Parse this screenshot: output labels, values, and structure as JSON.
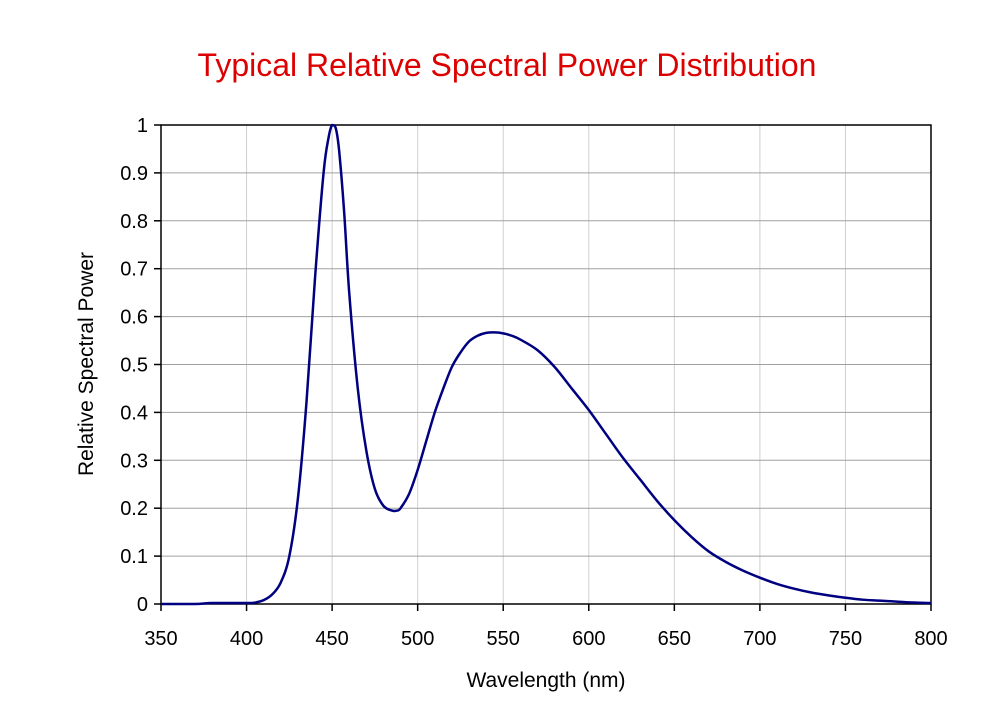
{
  "chart_data": {
    "type": "line",
    "title": "Typical Relative Spectral Power Distribution",
    "xlabel": "Wavelength (nm)",
    "ylabel": "Relative Spectral Power",
    "xlim": [
      350,
      800
    ],
    "ylim": [
      0,
      1
    ],
    "xticks": [
      350,
      400,
      450,
      500,
      550,
      600,
      650,
      700,
      750,
      800
    ],
    "yticks": [
      0,
      0.1,
      0.2,
      0.3,
      0.4,
      0.5,
      0.6,
      0.7,
      0.8,
      0.9,
      1
    ],
    "grid": true,
    "legend": "none",
    "colors": {
      "title": "#dd0000",
      "line": "#000080",
      "grid": "#a0a0a0",
      "vgrid": "#d0d0d0"
    },
    "series": [
      {
        "x": [
          350,
          370,
          380,
          400,
          405,
          410,
          415,
          420,
          425,
          430,
          435,
          440,
          445,
          448,
          450,
          452,
          454,
          457,
          460,
          465,
          470,
          475,
          480,
          485,
          488,
          490,
          495,
          500,
          505,
          510,
          515,
          520,
          525,
          530,
          535,
          540,
          545,
          550,
          555,
          560,
          570,
          580,
          590,
          600,
          610,
          620,
          630,
          640,
          650,
          660,
          670,
          680,
          690,
          700,
          710,
          720,
          730,
          740,
          750,
          760,
          770,
          780,
          790,
          800
        ],
        "y": [
          0,
          0,
          0.002,
          0.002,
          0.003,
          0.008,
          0.02,
          0.045,
          0.1,
          0.22,
          0.42,
          0.68,
          0.9,
          0.975,
          1.0,
          0.995,
          0.95,
          0.82,
          0.65,
          0.45,
          0.32,
          0.24,
          0.205,
          0.195,
          0.195,
          0.2,
          0.23,
          0.28,
          0.34,
          0.4,
          0.45,
          0.495,
          0.525,
          0.548,
          0.56,
          0.566,
          0.567,
          0.565,
          0.56,
          0.552,
          0.53,
          0.495,
          0.45,
          0.405,
          0.355,
          0.305,
          0.26,
          0.215,
          0.175,
          0.14,
          0.11,
          0.088,
          0.07,
          0.055,
          0.042,
          0.032,
          0.024,
          0.018,
          0.013,
          0.009,
          0.007,
          0.005,
          0.003,
          0.002
        ]
      }
    ]
  }
}
